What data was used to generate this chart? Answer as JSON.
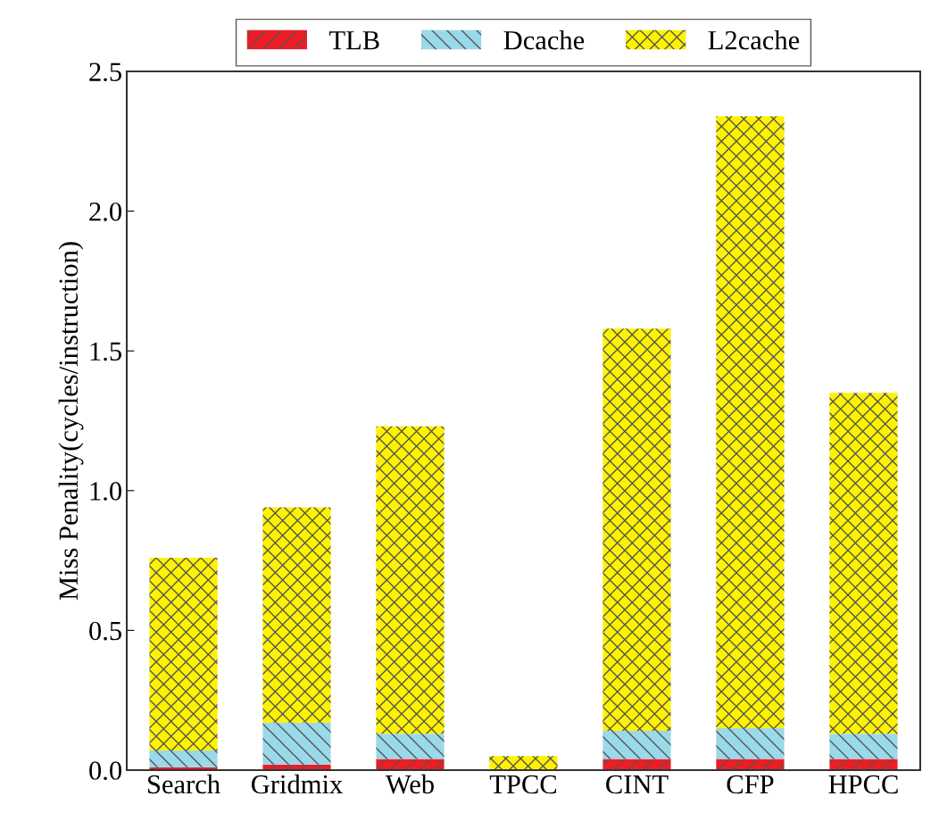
{
  "chart_data": {
    "type": "bar",
    "stacked": true,
    "ylabel": "Miss Penality(cycles/instruction)",
    "categories": [
      "Search",
      "Gridmix",
      "Web",
      "TPCC",
      "CINT",
      "CFP",
      "HPCC"
    ],
    "series": [
      {
        "name": "TLB",
        "color": "#ee1c25",
        "values": [
          0.01,
          0.02,
          0.04,
          0,
          0.04,
          0.04,
          0.04
        ]
      },
      {
        "name": "Dcache",
        "color": "#99d9ea",
        "values": [
          0.06,
          0.15,
          0.09,
          0,
          0.1,
          0.11,
          0.09
        ]
      },
      {
        "name": "L2cache",
        "color": "#fff200",
        "values": [
          0.69,
          0.77,
          1.1,
          0.05,
          1.44,
          2.19,
          1.22
        ]
      }
    ],
    "ylim": [
      0,
      2.5
    ],
    "yticks": [
      {
        "value": 0,
        "label": "0.0"
      },
      {
        "value": 0.5,
        "label": "0.5"
      },
      {
        "value": 1,
        "label": "1.0"
      },
      {
        "value": 1.5,
        "label": "1.5"
      },
      {
        "value": 2,
        "label": "2.0"
      },
      {
        "value": 2.5,
        "label": "2.5"
      }
    ],
    "grid": false,
    "legend": "top"
  }
}
